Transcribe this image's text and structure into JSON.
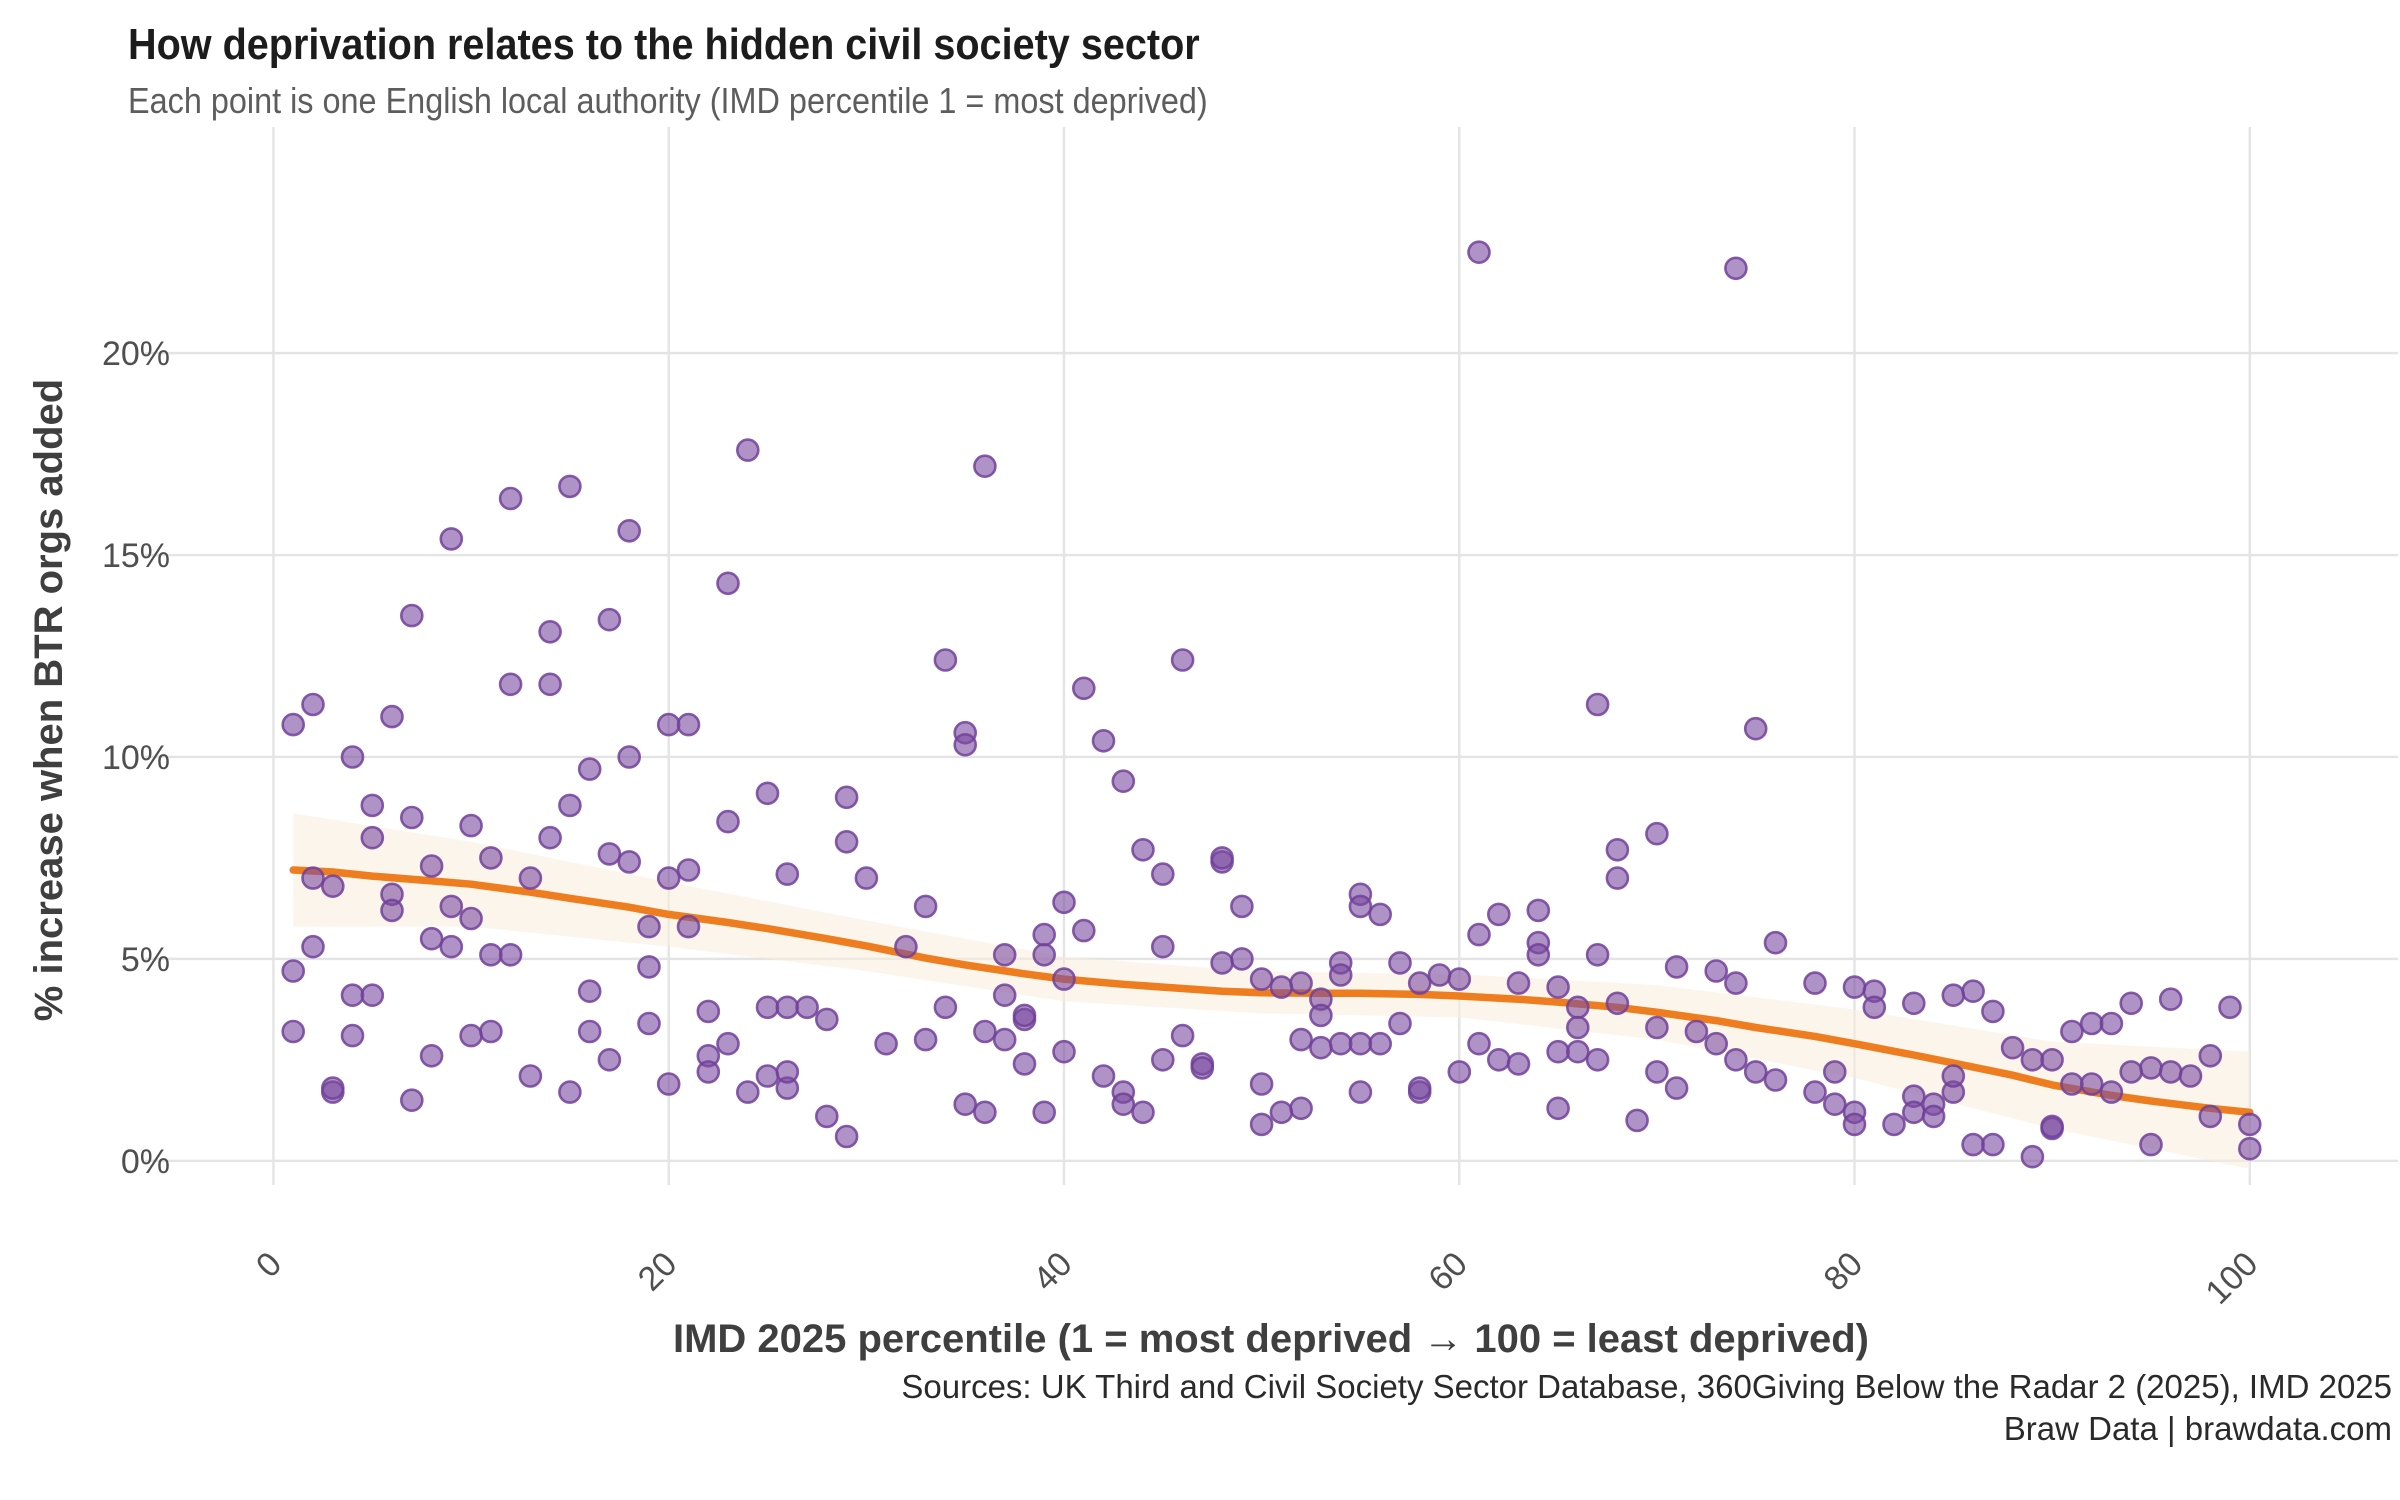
{
  "header": {
    "title": "How deprivation relates to the hidden civil society sector",
    "subtitle": "Each point is one English local authority (IMD percentile 1 = most deprived)"
  },
  "caption": {
    "line1": "Sources: UK Third and Civil Society Sector Database, 360Giving Below the Radar 2 (2025), IMD 2025",
    "line2": "Braw Data | brawdata.com"
  },
  "chart_data": {
    "type": "scatter",
    "title": "How deprivation relates to the hidden civil society sector",
    "subtitle": "Each point is one English local authority (IMD percentile 1 = most deprived)",
    "xlabel": "IMD 2025 percentile (1 = most deprived → 100 = least deprived)",
    "ylabel": "% increase when BTR orgs added",
    "xlim": [
      -6.5,
      107.5
    ],
    "ylim": [
      -0.6,
      25.6
    ],
    "grid": true,
    "legend": "none",
    "x_ticks": [
      {
        "value": 0,
        "label": "0"
      },
      {
        "value": 20,
        "label": "20"
      },
      {
        "value": 40,
        "label": "40"
      },
      {
        "value": 60,
        "label": "60"
      },
      {
        "value": 80,
        "label": "80"
      },
      {
        "value": 100,
        "label": "100"
      }
    ],
    "y_ticks": [
      {
        "value": 0,
        "label": "0%"
      },
      {
        "value": 5,
        "label": "5%"
      },
      {
        "value": 10,
        "label": "10%"
      },
      {
        "value": 15,
        "label": "15%"
      },
      {
        "value": 20,
        "label": "20%"
      }
    ],
    "colors": {
      "point_fill": "#7C4BA0",
      "point_stroke": "#71419A",
      "trend": "#ED7D1E",
      "ribbon": "#F8EDDD",
      "grid": "#E4E4E4",
      "background": "#FFFFFF"
    },
    "trend_line": [
      [
        1,
        7.2
      ],
      [
        3,
        7.15
      ],
      [
        5,
        7.05
      ],
      [
        8,
        6.93
      ],
      [
        10,
        6.85
      ],
      [
        13,
        6.65
      ],
      [
        15,
        6.5
      ],
      [
        18,
        6.28
      ],
      [
        20,
        6.1
      ],
      [
        23,
        5.9
      ],
      [
        25,
        5.75
      ],
      [
        28,
        5.5
      ],
      [
        30,
        5.32
      ],
      [
        33,
        5.02
      ],
      [
        35,
        4.85
      ],
      [
        38,
        4.63
      ],
      [
        40,
        4.5
      ],
      [
        43,
        4.37
      ],
      [
        45,
        4.3
      ],
      [
        48,
        4.2
      ],
      [
        50,
        4.16
      ],
      [
        53,
        4.15
      ],
      [
        55,
        4.15
      ],
      [
        58,
        4.12
      ],
      [
        60,
        4.08
      ],
      [
        63,
        4.0
      ],
      [
        65,
        3.93
      ],
      [
        68,
        3.8
      ],
      [
        70,
        3.68
      ],
      [
        73,
        3.47
      ],
      [
        75,
        3.3
      ],
      [
        78,
        3.08
      ],
      [
        80,
        2.9
      ],
      [
        83,
        2.62
      ],
      [
        85,
        2.42
      ],
      [
        88,
        2.12
      ],
      [
        90,
        1.88
      ],
      [
        93,
        1.62
      ],
      [
        95,
        1.48
      ],
      [
        98,
        1.3
      ],
      [
        100,
        1.2
      ]
    ],
    "ribbon": {
      "x": [
        1,
        10,
        20,
        30,
        40,
        50,
        60,
        70,
        80,
        90,
        100
      ],
      "upper": [
        8.6,
        7.9,
        6.9,
        5.95,
        5.05,
        4.68,
        4.62,
        4.35,
        3.75,
        2.95,
        2.7
      ],
      "lower": [
        5.8,
        5.8,
        5.3,
        4.7,
        3.95,
        3.65,
        3.55,
        3.0,
        2.05,
        0.8,
        -0.2
      ]
    },
    "points": [
      [
        1,
        10.8
      ],
      [
        2,
        11.3
      ],
      [
        4,
        10.0
      ],
      [
        6,
        11.0
      ],
      [
        7,
        13.5
      ],
      [
        9,
        15.4
      ],
      [
        12,
        16.4
      ],
      [
        12,
        11.8
      ],
      [
        14,
        11.8
      ],
      [
        14,
        13.1
      ],
      [
        15,
        16.7
      ],
      [
        17,
        13.4
      ],
      [
        18,
        15.6
      ],
      [
        23,
        14.3
      ],
      [
        24,
        17.6
      ],
      [
        16,
        9.7
      ],
      [
        18,
        10.0
      ],
      [
        20,
        10.8
      ],
      [
        21,
        10.8
      ],
      [
        25,
        9.1
      ],
      [
        29,
        9.0
      ],
      [
        23,
        8.4
      ],
      [
        5,
        8.8
      ],
      [
        7,
        8.5
      ],
      [
        10,
        8.3
      ],
      [
        15,
        8.8
      ],
      [
        5,
        8.0
      ],
      [
        14,
        8.0
      ],
      [
        11,
        7.5
      ],
      [
        17,
        7.6
      ],
      [
        18,
        7.4
      ],
      [
        2,
        7.0
      ],
      [
        3,
        6.8
      ],
      [
        6,
        6.6
      ],
      [
        6,
        6.2
      ],
      [
        8,
        7.3
      ],
      [
        9,
        6.3
      ],
      [
        10,
        6.0
      ],
      [
        13,
        7.0
      ],
      [
        19,
        5.8
      ],
      [
        21,
        5.8
      ],
      [
        20,
        7.0
      ],
      [
        21,
        7.2
      ],
      [
        26,
        7.1
      ],
      [
        30,
        7.0
      ],
      [
        29,
        7.9
      ],
      [
        2,
        5.3
      ],
      [
        1,
        4.7
      ],
      [
        8,
        5.5
      ],
      [
        9,
        5.3
      ],
      [
        11,
        5.1
      ],
      [
        12,
        5.1
      ],
      [
        19,
        4.8
      ],
      [
        4,
        4.1
      ],
      [
        5,
        4.1
      ],
      [
        16,
        4.2
      ],
      [
        22,
        3.7
      ],
      [
        25,
        3.8
      ],
      [
        26,
        3.8
      ],
      [
        27,
        3.8
      ],
      [
        28,
        3.5
      ],
      [
        1,
        3.2
      ],
      [
        4,
        3.1
      ],
      [
        8,
        2.6
      ],
      [
        10,
        3.1
      ],
      [
        11,
        3.2
      ],
      [
        16,
        3.2
      ],
      [
        17,
        2.5
      ],
      [
        19,
        3.4
      ],
      [
        22,
        2.6
      ],
      [
        23,
        2.9
      ],
      [
        25,
        2.1
      ],
      [
        26,
        1.8
      ],
      [
        26,
        2.2
      ],
      [
        28,
        1.1
      ],
      [
        29,
        0.6
      ],
      [
        3,
        1.7
      ],
      [
        3,
        1.8
      ],
      [
        7,
        1.5
      ],
      [
        13,
        2.1
      ],
      [
        15,
        1.7
      ],
      [
        20,
        1.9
      ],
      [
        22,
        2.2
      ],
      [
        24,
        1.7
      ],
      [
        31,
        2.9
      ],
      [
        32,
        5.3
      ],
      [
        33,
        6.3
      ],
      [
        34,
        3.8
      ],
      [
        33,
        3.0
      ],
      [
        34,
        12.4
      ],
      [
        36,
        17.2
      ],
      [
        35,
        10.6
      ],
      [
        35,
        10.3
      ],
      [
        41,
        11.7
      ],
      [
        42,
        10.4
      ],
      [
        46,
        12.4
      ],
      [
        43,
        9.4
      ],
      [
        44,
        7.7
      ],
      [
        45,
        7.1
      ],
      [
        45,
        5.3
      ],
      [
        48,
        7.4
      ],
      [
        48,
        7.5
      ],
      [
        49,
        6.3
      ],
      [
        40,
        6.4
      ],
      [
        39,
        5.6
      ],
      [
        39,
        5.1
      ],
      [
        37,
        5.1
      ],
      [
        37,
        4.1
      ],
      [
        41,
        5.7
      ],
      [
        40,
        4.5
      ],
      [
        36,
        3.2
      ],
      [
        37,
        3.0
      ],
      [
        38,
        3.5
      ],
      [
        38,
        3.6
      ],
      [
        38,
        2.4
      ],
      [
        40,
        2.7
      ],
      [
        42,
        2.1
      ],
      [
        43,
        1.7
      ],
      [
        43,
        1.4
      ],
      [
        44,
        1.2
      ],
      [
        35,
        1.4
      ],
      [
        36,
        1.2
      ],
      [
        39,
        1.2
      ],
      [
        45,
        2.5
      ],
      [
        46,
        3.1
      ],
      [
        47,
        2.4
      ],
      [
        47,
        2.3
      ],
      [
        48,
        4.9
      ],
      [
        49,
        5.0
      ],
      [
        50,
        4.5
      ],
      [
        51,
        4.3
      ],
      [
        52,
        4.4
      ],
      [
        53,
        4.0
      ],
      [
        53,
        3.6
      ],
      [
        52,
        3.0
      ],
      [
        53,
        2.8
      ],
      [
        54,
        4.9
      ],
      [
        54,
        4.6
      ],
      [
        54,
        2.9
      ],
      [
        55,
        6.6
      ],
      [
        55,
        6.3
      ],
      [
        56,
        6.1
      ],
      [
        55,
        2.9
      ],
      [
        56,
        2.9
      ],
      [
        55,
        1.7
      ],
      [
        50,
        1.9
      ],
      [
        50,
        0.9
      ],
      [
        51,
        1.2
      ],
      [
        52,
        1.3
      ],
      [
        57,
        4.9
      ],
      [
        57,
        3.4
      ],
      [
        58,
        4.4
      ],
      [
        58,
        1.7
      ],
      [
        58,
        1.8
      ],
      [
        59,
        4.6
      ],
      [
        60,
        4.5
      ],
      [
        60,
        2.2
      ],
      [
        61,
        22.5
      ],
      [
        61,
        5.6
      ],
      [
        62,
        6.1
      ],
      [
        61,
        2.9
      ],
      [
        62,
        2.5
      ],
      [
        63,
        2.4
      ],
      [
        64,
        5.4
      ],
      [
        64,
        5.1
      ],
      [
        63,
        4.4
      ],
      [
        65,
        4.3
      ],
      [
        66,
        3.8
      ],
      [
        66,
        3.3
      ],
      [
        67,
        5.1
      ],
      [
        67,
        11.3
      ],
      [
        68,
        7.7
      ],
      [
        68,
        7.0
      ],
      [
        64,
        6.2
      ],
      [
        65,
        2.7
      ],
      [
        66,
        2.7
      ],
      [
        67,
        2.5
      ],
      [
        70,
        8.1
      ],
      [
        68,
        3.9
      ],
      [
        65,
        1.3
      ],
      [
        69,
        1.0
      ],
      [
        74,
        22.1
      ],
      [
        75,
        10.7
      ],
      [
        76,
        5.4
      ],
      [
        71,
        4.8
      ],
      [
        73,
        4.7
      ],
      [
        74,
        4.4
      ],
      [
        72,
        3.2
      ],
      [
        73,
        2.9
      ],
      [
        70,
        3.3
      ],
      [
        70,
        2.2
      ],
      [
        71,
        1.8
      ],
      [
        78,
        4.4
      ],
      [
        80,
        4.3
      ],
      [
        81,
        4.2
      ],
      [
        81,
        3.8
      ],
      [
        83,
        3.9
      ],
      [
        85,
        4.1
      ],
      [
        86,
        4.2
      ],
      [
        87,
        3.7
      ],
      [
        88,
        2.8
      ],
      [
        89,
        2.5
      ],
      [
        90,
        2.5
      ],
      [
        91,
        3.2
      ],
      [
        92,
        3.4
      ],
      [
        93,
        3.4
      ],
      [
        94,
        3.9
      ],
      [
        95,
        2.3
      ],
      [
        96,
        2.2
      ],
      [
        97,
        2.1
      ],
      [
        98,
        2.6
      ],
      [
        96,
        4.0
      ],
      [
        99,
        3.8
      ],
      [
        98,
        1.1
      ],
      [
        100,
        0.9
      ],
      [
        100,
        0.3
      ],
      [
        74,
        2.5
      ],
      [
        75,
        2.2
      ],
      [
        76,
        2.0
      ],
      [
        78,
        1.7
      ],
      [
        79,
        1.4
      ],
      [
        79,
        2.2
      ],
      [
        80,
        1.2
      ],
      [
        80,
        0.9
      ],
      [
        82,
        0.9
      ],
      [
        83,
        1.6
      ],
      [
        83,
        1.2
      ],
      [
        84,
        1.4
      ],
      [
        84,
        1.1
      ],
      [
        85,
        1.7
      ],
      [
        85,
        2.1
      ],
      [
        86,
        0.4
      ],
      [
        87,
        0.4
      ],
      [
        89,
        0.1
      ],
      [
        90,
        0.8
      ],
      [
        90,
        0.85
      ],
      [
        91,
        1.9
      ],
      [
        92,
        1.9
      ],
      [
        93,
        1.7
      ],
      [
        94,
        2.2
      ],
      [
        95,
        0.4
      ]
    ]
  }
}
